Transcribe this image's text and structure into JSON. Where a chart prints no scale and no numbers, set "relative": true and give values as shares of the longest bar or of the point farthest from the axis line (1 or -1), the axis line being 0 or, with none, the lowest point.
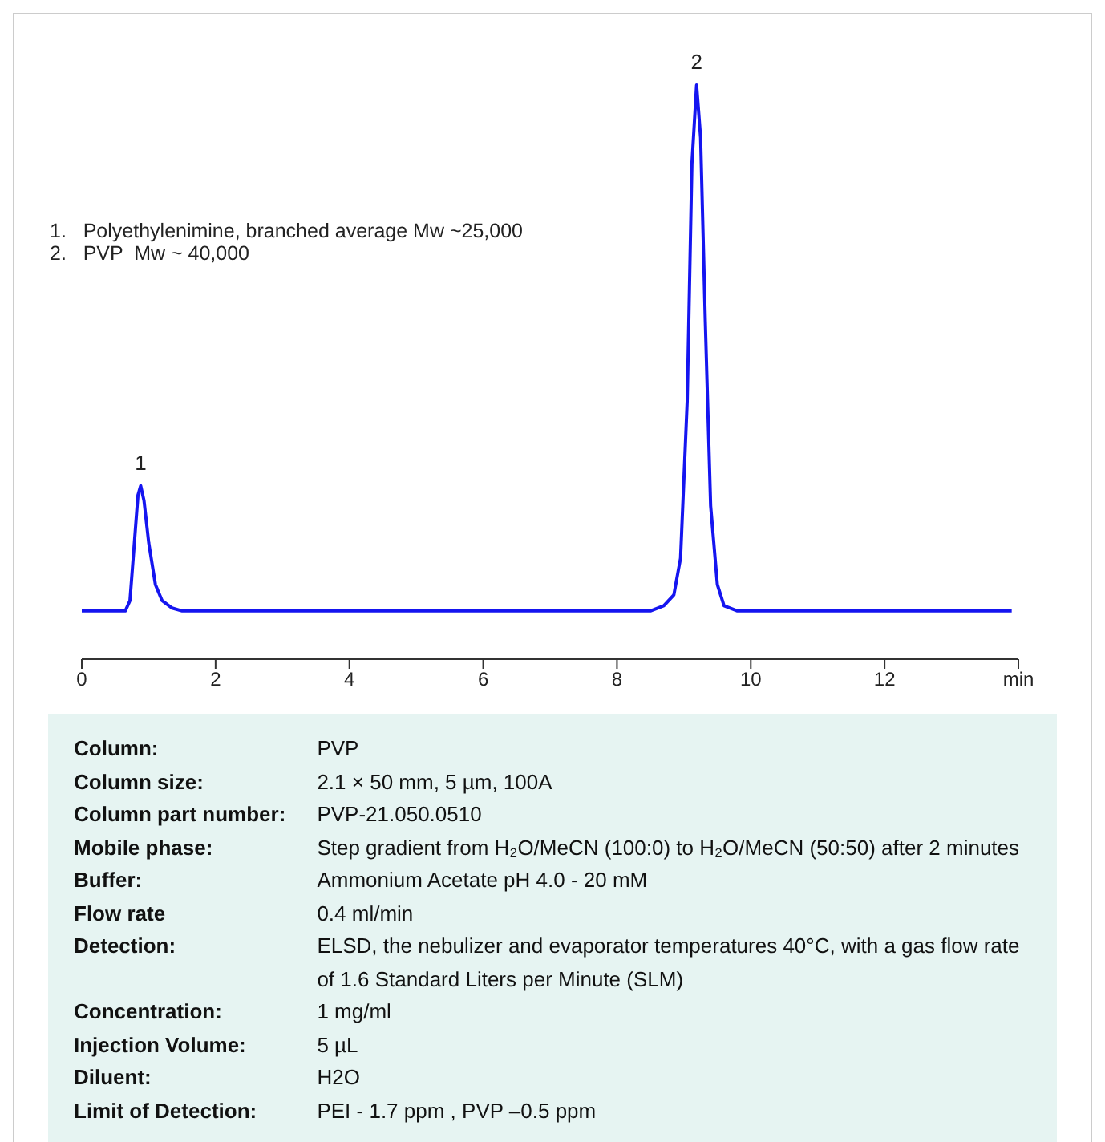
{
  "chart_data": {
    "type": "line",
    "relative": true,
    "xlim": [
      0,
      14
    ],
    "xticks": [
      0,
      2,
      4,
      6,
      8,
      10,
      12,
      {
        "value": 14,
        "label": "min"
      }
    ],
    "marker": "none",
    "line_style": "solid",
    "series": [
      {
        "color": "#1515f0",
        "x": [
          0,
          0.65,
          0.72,
          0.78,
          0.84,
          0.88,
          0.93,
          1.0,
          1.1,
          1.2,
          1.35,
          1.5,
          8.5,
          8.7,
          8.85,
          8.95,
          9.05,
          9.12,
          9.19,
          9.25,
          9.32,
          9.4,
          9.5,
          9.6,
          9.8,
          13.9
        ],
        "values": [
          0.084,
          0.084,
          0.102,
          0.194,
          0.286,
          0.302,
          0.276,
          0.203,
          0.13,
          0.102,
          0.089,
          0.084,
          0.084,
          0.093,
          0.112,
          0.176,
          0.45,
          0.863,
          1,
          0.908,
          0.588,
          0.267,
          0.13,
          0.093,
          0.084,
          0.084
        ]
      }
    ],
    "annotations": [
      {
        "text": "1",
        "x": 0.88,
        "y": 0.302
      },
      {
        "text": "2",
        "x": 9.19,
        "y": 1
      },
      "1.   Polyethylenimine, branched average Mw ~25,000",
      "2.   PVP  Mw ~ 40,000",
      "Column:",
      "PVP",
      "Column size:",
      "2.1 × 50 mm, 5 µm, 100A",
      "Column part number:",
      "PVP-21.050.0510",
      "Mobile phase:",
      "Step gradient from H₂O/MeCN (100:0) to H₂O/MeCN (50:50) after 2 minutes",
      "Buffer:",
      "Ammonium Acetate  pH 4.0 -  20 mM",
      "Flow rate",
      "0.4 ml/min",
      "Detection:",
      "ELSD, the nebulizer and evaporator temperatures 40°C, with a gas flow rate of 1.6 Standard Liters per Minute (SLM)",
      "Concentration:",
      "1 mg/ml",
      "Injection Volume:",
      "5 µL",
      "Diluent:",
      "H2O",
      "Limit of Detection:",
      "PEI  - 1.7 ppm , PVP –0.5 ppm"
    ]
  }
}
